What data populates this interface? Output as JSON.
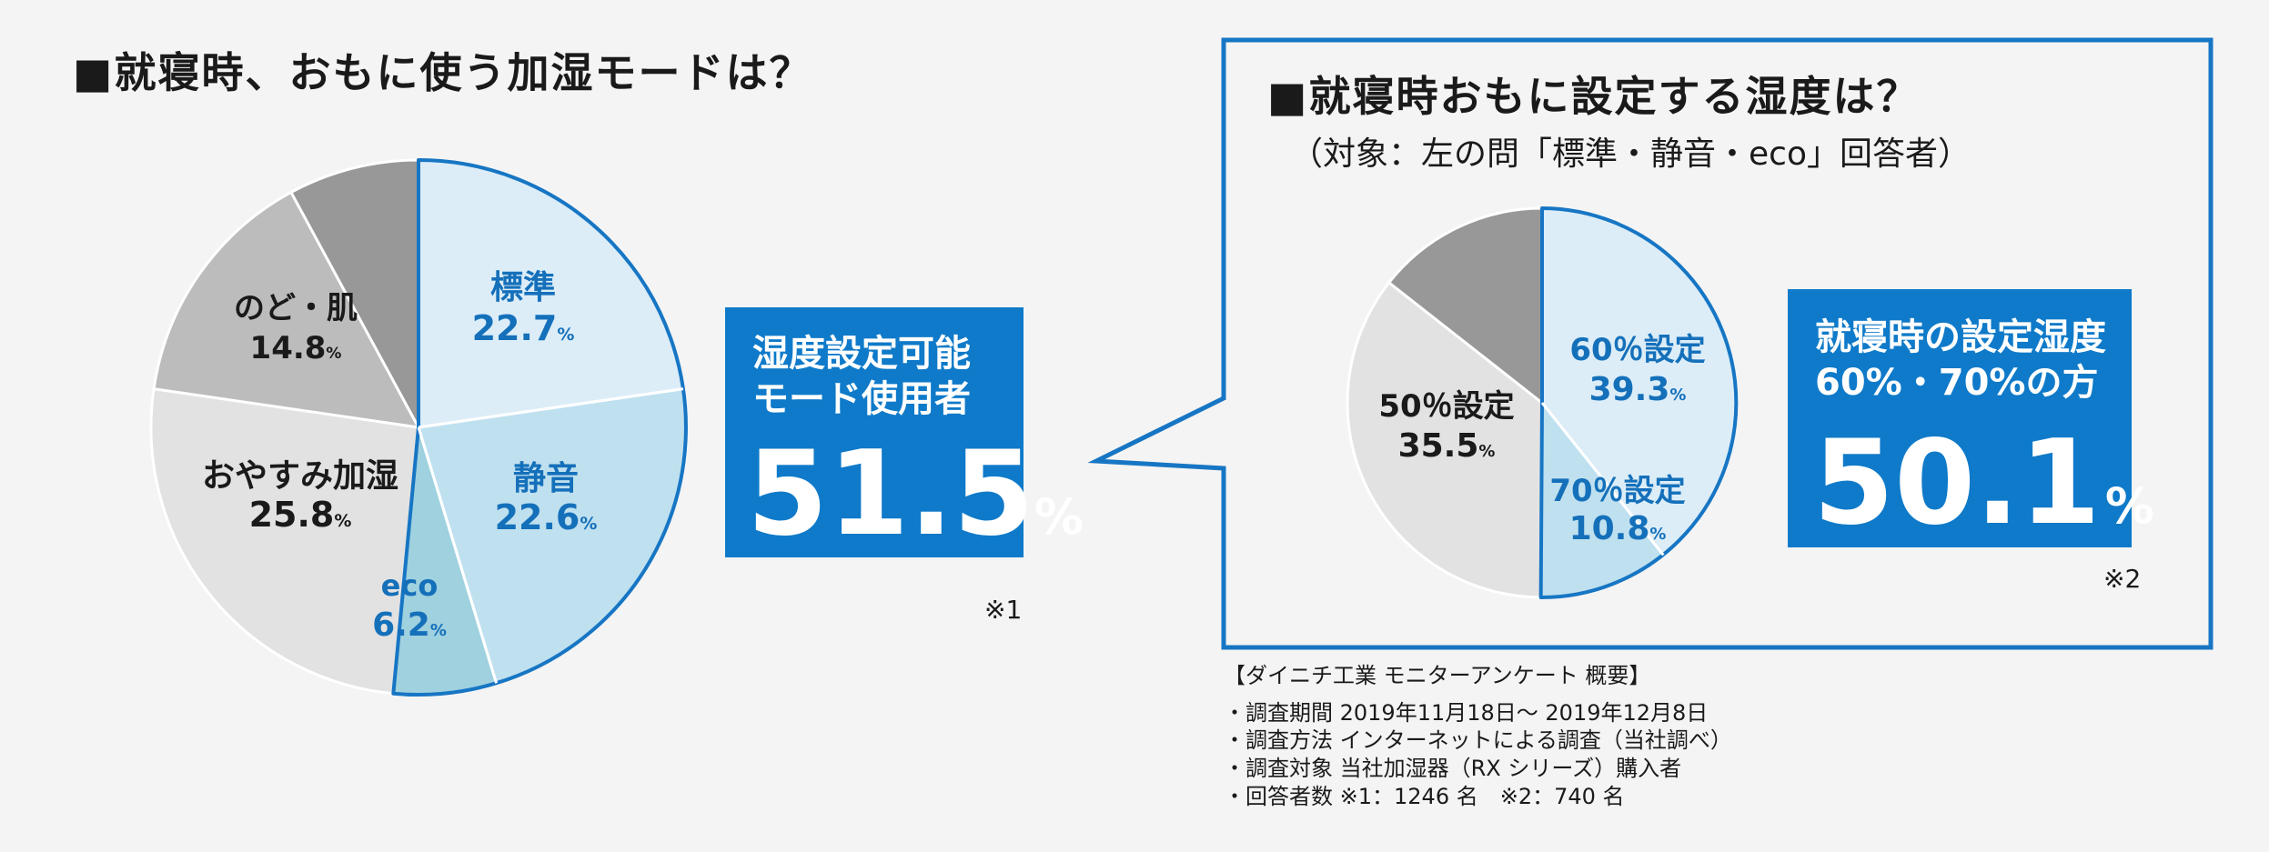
{
  "left": {
    "title": "■就寝時、おもに使う加湿モードは？",
    "callout": {
      "line1": "湿度設定可能",
      "line2": "モード使用者",
      "value": "51.5",
      "unit": "%"
    },
    "note": "※1"
  },
  "right": {
    "title": "■就寝時おもに設定する湿度は？",
    "subtitle": "（対象：左の問「標準・静音・eco」回答者）",
    "callout": {
      "line1": "就寝時の設定湿度",
      "line2": "60%・70%の方",
      "value": "50.1",
      "unit": "%"
    },
    "note": "※2"
  },
  "footer": {
    "heading": "【ダイニチ工業 モニターアンケート 概要】",
    "lines": [
      "・調査期間 2019年11月18日～ 2019年12月8日",
      "・調査方法 インターネットによる調査（当社調べ）",
      "・調査対象 当社加湿器（RX シリーズ）購入者",
      "・回答者数 ※1：1246 名　※2：740 名"
    ]
  },
  "colors": {
    "blue_accent": "#1776c4",
    "callout_bg": "#0f7ac9",
    "slice_light_blue": "#dcedf8",
    "slice_mid_blue": "#bfe0ef",
    "slice_eco": "#9fd1df",
    "slice_light_gray": "#e2e2e2",
    "slice_mid_gray": "#bcbcbc",
    "slice_dark_gray": "#989898",
    "label_blue": "#1570ba",
    "label_dark": "#1a1a1a"
  },
  "chart_data": [
    {
      "type": "pie",
      "title": "■就寝時、おもに使う加湿モードは？",
      "slices": [
        {
          "name": "標準",
          "value": 22.7,
          "display": "22.7",
          "color": "#dcedf8",
          "highlight": true,
          "label_color": "#1570ba"
        },
        {
          "name": "静音",
          "value": 22.6,
          "display": "22.6",
          "color": "#bfe0ef",
          "highlight": true,
          "label_color": "#1570ba"
        },
        {
          "name": "eco",
          "value": 6.2,
          "display": "6.2",
          "color": "#9fd1df",
          "highlight": true,
          "label_color": "#1570ba"
        },
        {
          "name": "おやすみ加湿",
          "value": 25.8,
          "display": "25.8",
          "color": "#e2e2e2",
          "highlight": false,
          "label_color": "#1a1a1a"
        },
        {
          "name": "のど・肌",
          "value": 14.8,
          "display": "14.8",
          "color": "#bcbcbc",
          "highlight": false,
          "label_color": "#1a1a1a"
        },
        {
          "name": "",
          "value": 7.9,
          "display": "",
          "color": "#989898",
          "highlight": false,
          "label_color": "#1a1a1a"
        }
      ],
      "unit": "%"
    },
    {
      "type": "pie",
      "title": "■就寝時おもに設定する湿度は？",
      "slices": [
        {
          "name": "60％設定",
          "value": 39.3,
          "display": "39.3",
          "color": "#dcedf8",
          "highlight": true,
          "label_color": "#1570ba"
        },
        {
          "name": "70％設定",
          "value": 10.8,
          "display": "10.8",
          "color": "#bfe0ef",
          "highlight": true,
          "label_color": "#1570ba"
        },
        {
          "name": "50％設定",
          "value": 35.5,
          "display": "35.5",
          "color": "#e2e2e2",
          "highlight": false,
          "label_color": "#1a1a1a"
        },
        {
          "name": "",
          "value": 14.4,
          "display": "",
          "color": "#989898",
          "highlight": false,
          "label_color": "#1a1a1a"
        }
      ],
      "unit": "%"
    }
  ]
}
